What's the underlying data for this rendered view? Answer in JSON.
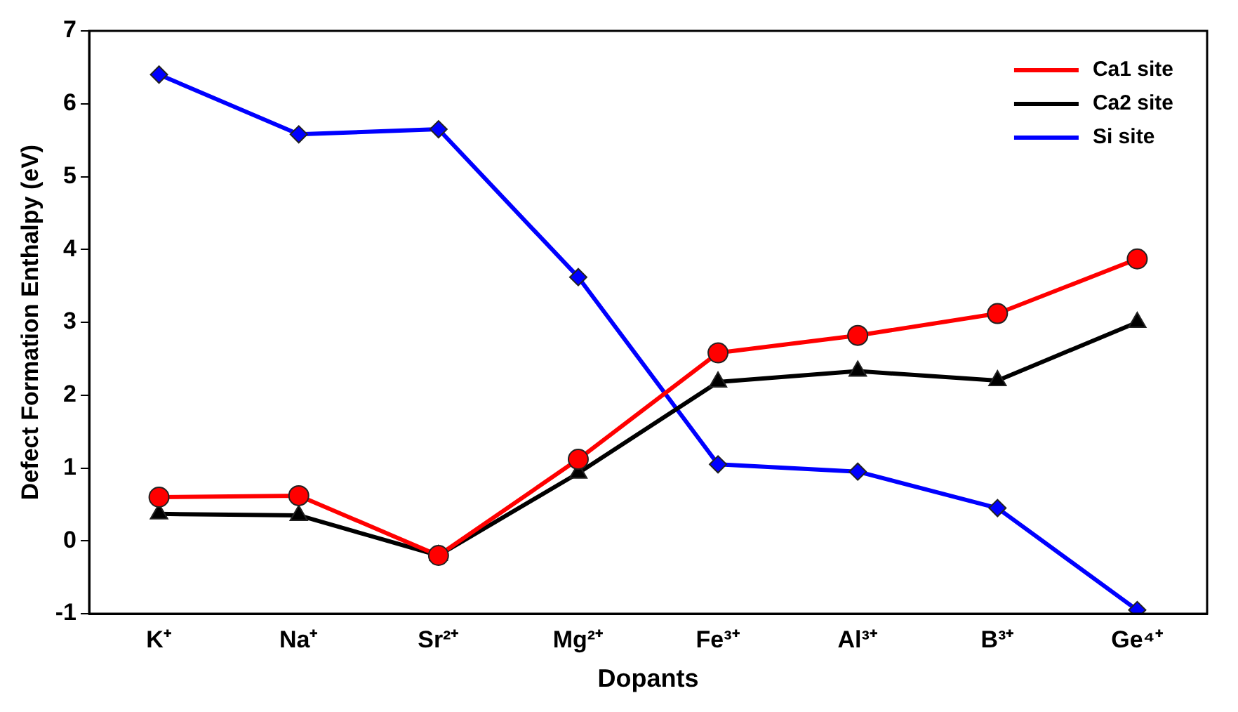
{
  "chart_data": {
    "type": "line",
    "xlabel": "Dopants",
    "ylabel": "Defect Formation Enthalpy (eV)",
    "categories": [
      "K⁺",
      "Na⁺",
      "Sr²⁺",
      "Mg²⁺",
      "Fe³⁺",
      "Al³⁺",
      "B³⁺",
      "Ge⁴⁺"
    ],
    "series": [
      {
        "name": "Ca1 site",
        "color": "#ff0000",
        "marker": "circle",
        "values": [
          0.6,
          0.62,
          -0.2,
          1.12,
          2.58,
          2.82,
          3.12,
          3.87
        ]
      },
      {
        "name": "Ca2 site",
        "color": "#000000",
        "marker": "triangle",
        "values": [
          0.37,
          0.35,
          -0.2,
          0.93,
          2.18,
          2.33,
          2.2,
          3.0
        ]
      },
      {
        "name": "Si site",
        "color": "#0000ff",
        "marker": "diamond",
        "values": [
          6.4,
          5.58,
          5.65,
          3.62,
          1.05,
          0.95,
          0.45,
          -0.95
        ]
      }
    ],
    "ylim": [
      -1,
      7
    ],
    "yticks": [
      -1,
      0,
      1,
      2,
      3,
      4,
      5,
      6,
      7
    ],
    "grid": false,
    "legend": "top right",
    "line_style": "solid"
  }
}
